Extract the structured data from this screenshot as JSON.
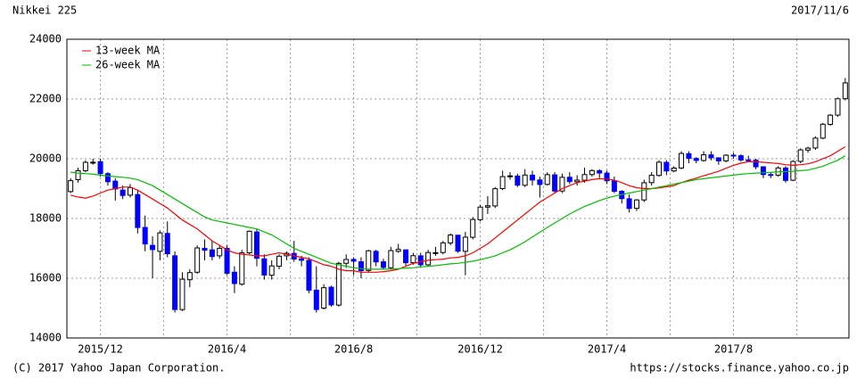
{
  "chart_data": {
    "type": "candlestick",
    "title": "Nikkei 225",
    "date": "2017/11/6",
    "footer_left": "(C) 2017 Yahoo Japan Corporation.",
    "footer_right": "https://stocks.finance.yahoo.co.jp",
    "categories": [
      null,
      null,
      null,
      null,
      "2015/12",
      null,
      null,
      null,
      null,
      null,
      null,
      null,
      null,
      null,
      null,
      null,
      null,
      null,
      null,
      null,
      null,
      "2016/4",
      null,
      null,
      null,
      null,
      null,
      null,
      null,
      null,
      null,
      null,
      null,
      null,
      null,
      null,
      null,
      null,
      "2016/8",
      null,
      null,
      null,
      null,
      null,
      null,
      null,
      null,
      null,
      null,
      null,
      null,
      null,
      null,
      null,
      null,
      "2016/12",
      null,
      null,
      null,
      null,
      null,
      null,
      null,
      null,
      null,
      null,
      null,
      null,
      null,
      null,
      null,
      null,
      "2017/4",
      null,
      null,
      null,
      null,
      null,
      null,
      null,
      null,
      null,
      null,
      null,
      null,
      null,
      null,
      null,
      null,
      "2017/8",
      null,
      null,
      null,
      null,
      null,
      null,
      null,
      null,
      null,
      null,
      null,
      null,
      null,
      null,
      null
    ],
    "open": [
      18900,
      19300,
      19600,
      19870,
      19900,
      19500,
      19250,
      18950,
      18780,
      18800,
      17700,
      17100,
      16900,
      17500,
      16750,
      14950,
      15950,
      16200,
      17000,
      16950,
      16750,
      17000,
      16200,
      15800,
      16850,
      17550,
      16650,
      16100,
      16400,
      16750,
      16830,
      16650,
      16600,
      15600,
      15000,
      15700,
      15100,
      16500,
      16630,
      16550,
      16260,
      16900,
      16550,
      16350,
      16900,
      16950,
      16520,
      16750,
      16450,
      16850,
      16860,
      17180,
      17440,
      16900,
      17370,
      17960,
      18380,
      18420,
      19000,
      19400,
      19420,
      19110,
      19450,
      19290,
      19140,
      19460,
      18920,
      19380,
      19230,
      19280,
      19470,
      19600,
      19520,
      19260,
      18910,
      18660,
      18340,
      18620,
      19200,
      19440,
      19880,
      19590,
      19690,
      20170,
      20010,
      19940,
      20130,
      20030,
      19930,
      20120,
      20100,
      19960,
      19950,
      19730,
      19470,
      19450,
      19690,
      19280,
      19910,
      20290,
      20360,
      20690,
      21150,
      21460,
      22010
    ],
    "high": [
      19350,
      19700,
      19950,
      20000,
      20000,
      19550,
      19350,
      19100,
      19150,
      18950,
      18100,
      17400,
      17600,
      17900,
      16900,
      16200,
      16300,
      17100,
      17300,
      17250,
      17100,
      17100,
      16400,
      16950,
      17600,
      17650,
      16800,
      16600,
      16800,
      16900,
      17250,
      16750,
      16700,
      16400,
      15800,
      15750,
      16550,
      16800,
      16700,
      16700,
      16950,
      16950,
      16650,
      17050,
      17150,
      16900,
      16850,
      16850,
      16950,
      17050,
      17250,
      17500,
      17450,
      17550,
      18050,
      18450,
      18750,
      19050,
      19600,
      19550,
      19500,
      19650,
      19600,
      19400,
      19550,
      19550,
      19500,
      19550,
      19450,
      19700,
      19650,
      19650,
      19600,
      19400,
      18950,
      18800,
      18650,
      19300,
      19550,
      19950,
      19950,
      19750,
      20250,
      20250,
      20050,
      20250,
      20250,
      20050,
      20150,
      20200,
      20150,
      20100,
      20000,
      19750,
      19550,
      19750,
      19750,
      19950,
      20350,
      20400,
      20750,
      21200,
      21500,
      22050,
      22700
    ],
    "low": [
      18850,
      19200,
      19550,
      19800,
      19400,
      19100,
      18600,
      18650,
      18700,
      17500,
      16900,
      16000,
      16600,
      16700,
      14850,
      14900,
      15700,
      16150,
      16600,
      16600,
      16650,
      16100,
      15500,
      15750,
      16800,
      16400,
      15950,
      15950,
      16300,
      16600,
      16550,
      16400,
      15500,
      14850,
      14950,
      15050,
      15050,
      16350,
      16100,
      16000,
      16200,
      16400,
      16300,
      16300,
      16850,
      16400,
      16450,
      16350,
      16400,
      16750,
      16800,
      17100,
      16850,
      16100,
      17300,
      17900,
      18150,
      18350,
      18950,
      19300,
      19050,
      19050,
      19100,
      18700,
      19100,
      18850,
      18850,
      19150,
      19100,
      19200,
      19400,
      19350,
      19150,
      18850,
      18500,
      18200,
      18250,
      18550,
      19100,
      19400,
      19450,
      19550,
      19650,
      19850,
      19850,
      19900,
      19950,
      19800,
      19880,
      20000,
      19900,
      19880,
      19650,
      19350,
      19350,
      19400,
      19200,
      19250,
      19850,
      20200,
      20300,
      20650,
      21100,
      21400,
      21950
    ],
    "close": [
      19265,
      19597,
      19879,
      19883,
      19504,
      19230,
      18986,
      18769,
      19033,
      17697,
      17147,
      16958,
      17518,
      16819,
      14952,
      15967,
      16188,
      17014,
      16938,
      16724,
      17002,
      16164,
      15821,
      16848,
      17572,
      16666,
      16106,
      16412,
      16736,
      16834,
      16642,
      16601,
      15599,
      14952,
      15682,
      15106,
      16497,
      16627,
      16569,
      16254,
      16919,
      16545,
      16360,
      16925,
      16965,
      16519,
      16754,
      16449,
      16860,
      16856,
      17184,
      17446,
      16905,
      17374,
      17967,
      18381,
      18426,
      18996,
      19401,
      19427,
      19114,
      19454,
      19287,
      19137,
      19467,
      18918,
      19378,
      19234,
      19283,
      19469,
      19604,
      19521,
      19262,
      18909,
      18664,
      18335,
      18620,
      19196,
      19445,
      19883,
      19590,
      19686,
      20177,
      20013,
      19943,
      20132,
      20033,
      19929,
      20118,
      20099,
      19959,
      19952,
      19729,
      19470,
      19452,
      19691,
      19274,
      19909,
      20296,
      20356,
      20690,
      21155,
      21457,
      22008,
      22539
    ],
    "up_color": "#ffffff",
    "down_color": "#0000ff",
    "series": [
      {
        "name": "13-week MA",
        "color": "#ff0000",
        "values": [
          18780,
          18720,
          18680,
          18750,
          18850,
          18950,
          19000,
          19050,
          19050,
          18950,
          18800,
          18650,
          18500,
          18350,
          18150,
          17950,
          17800,
          17650,
          17450,
          17250,
          17100,
          16950,
          16850,
          16800,
          16780,
          16750,
          16750,
          16800,
          16850,
          16800,
          16750,
          16700,
          16650,
          16550,
          16450,
          16400,
          16300,
          16250,
          16250,
          16200,
          16200,
          16200,
          16220,
          16250,
          16300,
          16400,
          16500,
          16550,
          16600,
          16620,
          16640,
          16680,
          16700,
          16750,
          16850,
          17000,
          17150,
          17350,
          17550,
          17750,
          17950,
          18150,
          18350,
          18550,
          18700,
          18850,
          19000,
          19100,
          19200,
          19250,
          19300,
          19330,
          19320,
          19280,
          19200,
          19100,
          19030,
          19000,
          19000,
          19020,
          19060,
          19100,
          19200,
          19280,
          19350,
          19430,
          19500,
          19580,
          19680,
          19780,
          19850,
          19900,
          19900,
          19880,
          19860,
          19840,
          19800,
          19780,
          19800,
          19830,
          19900,
          20000,
          20100,
          20250,
          20400
        ]
      },
      {
        "name": "26-week MA",
        "color": "#00c000",
        "values": [
          19550,
          19520,
          19500,
          19480,
          19450,
          19420,
          19400,
          19380,
          19350,
          19300,
          19200,
          19100,
          18950,
          18800,
          18650,
          18500,
          18350,
          18200,
          18050,
          17950,
          17900,
          17850,
          17800,
          17750,
          17700,
          17650,
          17550,
          17450,
          17300,
          17150,
          17000,
          16900,
          16800,
          16700,
          16600,
          16500,
          16450,
          16400,
          16350,
          16320,
          16300,
          16300,
          16300,
          16300,
          16320,
          16340,
          16350,
          16380,
          16400,
          16420,
          16450,
          16480,
          16500,
          16530,
          16570,
          16620,
          16680,
          16750,
          16850,
          16950,
          17080,
          17220,
          17380,
          17540,
          17700,
          17850,
          18000,
          18150,
          18280,
          18400,
          18500,
          18600,
          18680,
          18750,
          18800,
          18850,
          18900,
          18950,
          19000,
          19050,
          19100,
          19150,
          19200,
          19250,
          19300,
          19330,
          19360,
          19390,
          19420,
          19450,
          19480,
          19500,
          19520,
          19530,
          19540,
          19560,
          19570,
          19580,
          19600,
          19620,
          19680,
          19750,
          19850,
          19950,
          20100
        ]
      }
    ],
    "ylim": [
      14000,
      24000
    ],
    "yticks": [
      14000,
      16000,
      18000,
      20000,
      22000,
      24000
    ],
    "grid": true
  }
}
